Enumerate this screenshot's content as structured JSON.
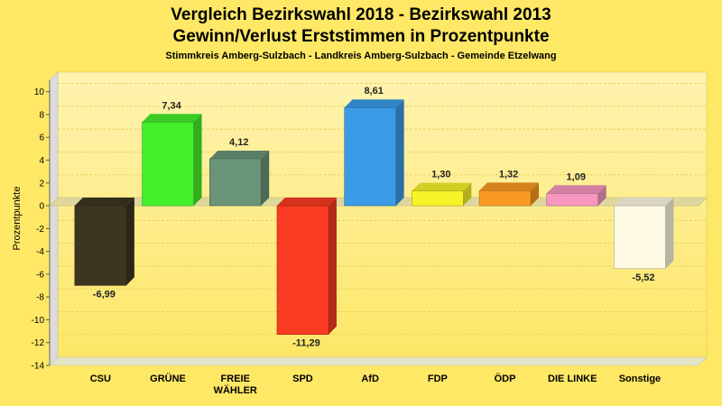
{
  "chart_data": {
    "type": "bar",
    "title_line1": "Vergleich Bezirkswahl 2018 - Bezirkswahl 2013",
    "title_line2": "Gewinn/Verlust Erststimmen in Prozentpunkte",
    "subtitle": "Stimmkreis Amberg-Sulzbach - Landkreis Amberg-Sulzbach - Gemeinde Etzelwang",
    "ylabel": "Prozentpunkte",
    "xlabel": "",
    "ylim": [
      -14,
      11
    ],
    "yticks": [
      10,
      8,
      6,
      4,
      2,
      0,
      -2,
      -4,
      -6,
      -8,
      -10,
      -12,
      -14
    ],
    "grid": true,
    "categories": [
      {
        "label": [
          "CSU"
        ],
        "value": -6.99,
        "value_label": "-6,99",
        "color": "#3d3520"
      },
      {
        "label": [
          "GRÜNE"
        ],
        "value": 7.34,
        "value_label": "7,34",
        "color": "#44f02a"
      },
      {
        "label": [
          "FREIE",
          "WÄHLER"
        ],
        "value": 4.12,
        "value_label": "4,12",
        "color": "#6a9478"
      },
      {
        "label": [
          "SPD"
        ],
        "value": -11.29,
        "value_label": "-11,29",
        "color": "#fa3a22"
      },
      {
        "label": [
          "AfD"
        ],
        "value": 8.61,
        "value_label": "8,61",
        "color": "#3b9be6"
      },
      {
        "label": [
          "FDP"
        ],
        "value": 1.3,
        "value_label": "1,30",
        "color": "#f6f428"
      },
      {
        "label": [
          "ÖDP"
        ],
        "value": 1.32,
        "value_label": "1,32",
        "color": "#fb9a22"
      },
      {
        "label": [
          "DIE LINKE"
        ],
        "value": 1.09,
        "value_label": "1,09",
        "color": "#f797c0"
      },
      {
        "label": [
          "Sonstige"
        ],
        "value": -5.52,
        "value_label": "-5,52",
        "color": "#fffbe4"
      }
    ]
  }
}
